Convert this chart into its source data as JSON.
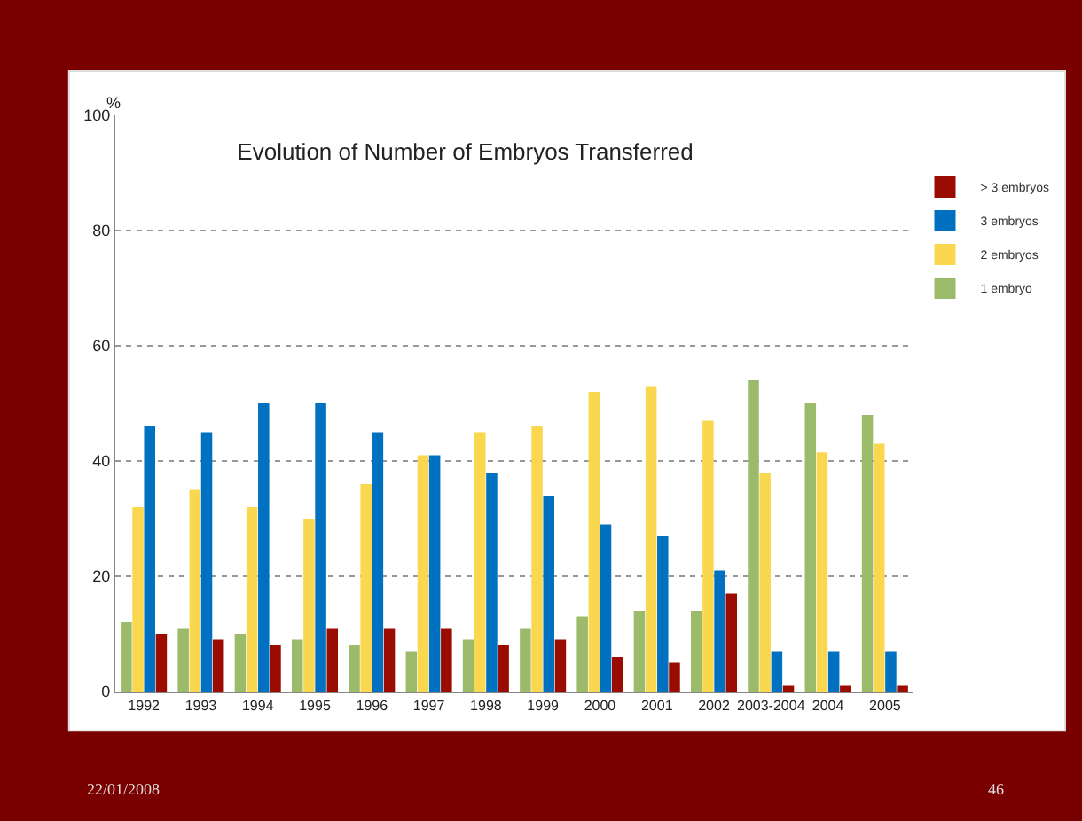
{
  "chart_data": {
    "type": "bar",
    "title": "Evolution of Number of Embryos Transferred",
    "ylabel": "%",
    "categories": [
      "1992",
      "1993",
      "1994",
      "1995",
      "1996",
      "1997",
      "1998",
      "1999",
      "2000",
      "2001",
      "2002",
      "2003-2004",
      "2004",
      "2005"
    ],
    "series": [
      {
        "name": "1 embryo",
        "color": "#9bbb6a",
        "values": [
          12,
          11,
          10,
          9,
          8,
          7,
          9,
          11,
          13,
          14,
          14,
          54,
          50,
          48
        ]
      },
      {
        "name": "2 embryos",
        "color": "#f9d84f",
        "values": [
          32,
          35,
          32,
          30,
          36,
          41,
          45,
          46,
          52,
          53,
          47,
          38,
          41.5,
          43
        ]
      },
      {
        "name": "3 embryos",
        "color": "#0070c0",
        "values": [
          46,
          45,
          50,
          50,
          45,
          41,
          38,
          34,
          29,
          27,
          21,
          7,
          7,
          7
        ]
      },
      {
        "name": "> 3 embryos",
        "color": "#9b0c00",
        "values": [
          10,
          9,
          8,
          11,
          11,
          11,
          8,
          9,
          6,
          5,
          17,
          1,
          1,
          1
        ]
      }
    ],
    "ylim": [
      0,
      100
    ],
    "yticks": [
      0,
      20,
      40,
      60,
      80,
      100
    ],
    "grid": "y",
    "legend": "top right",
    "annotations": [
      "22/01/2008",
      "46"
    ]
  }
}
